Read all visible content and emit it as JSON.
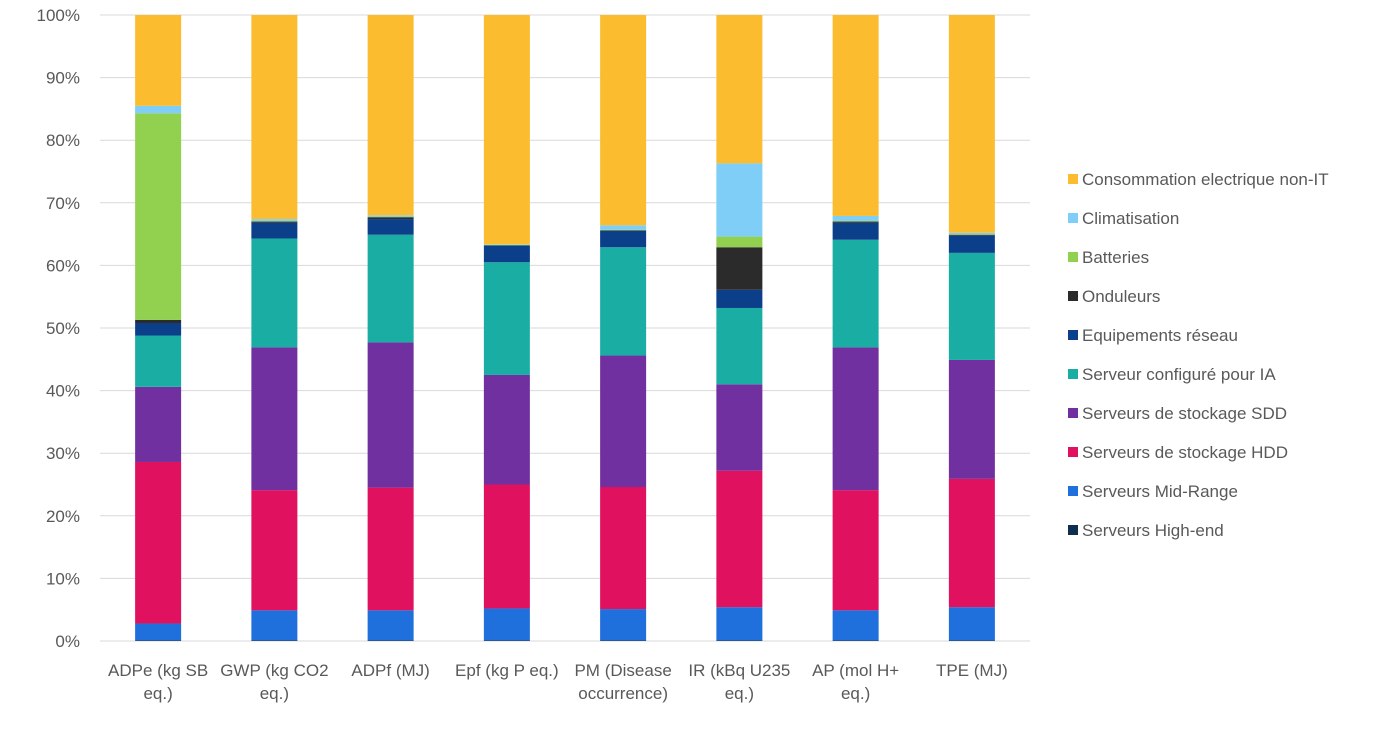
{
  "chart_data": {
    "type": "bar",
    "stacked": true,
    "percent_stacked": true,
    "title": "",
    "xlabel": "",
    "ylabel": "",
    "ylim": [
      0,
      100
    ],
    "y_ticks": [
      "0%",
      "10%",
      "20%",
      "30%",
      "40%",
      "50%",
      "60%",
      "70%",
      "80%",
      "90%",
      "100%"
    ],
    "grid": true,
    "legend_position": "right",
    "categories": [
      [
        "ADPe (kg SB",
        "eq.)"
      ],
      [
        "GWP (kg CO2",
        "eq.)"
      ],
      [
        "ADPf (MJ)"
      ],
      [
        "Epf (kg P eq.)"
      ],
      [
        "PM (Disease",
        "occurrence)"
      ],
      [
        "IR (kBq U235",
        "eq.)"
      ],
      [
        "AP (mol H+",
        "eq.)"
      ],
      [
        "TPE (MJ)"
      ]
    ],
    "series": [
      {
        "name": "Serveurs High-end",
        "color": "#0d2e4f",
        "values": [
          0.1,
          0.1,
          0.1,
          0.1,
          0.1,
          0.1,
          0.1,
          0.1
        ]
      },
      {
        "name": "Serveurs Mid-Range",
        "color": "#1f6fdc",
        "values": [
          2.7,
          4.8,
          4.8,
          5.1,
          5.0,
          5.3,
          4.8,
          5.3
        ]
      },
      {
        "name": "Serveurs de stockage HDD",
        "color": "#e0115f",
        "values": [
          25.8,
          19.2,
          19.6,
          19.8,
          19.5,
          21.8,
          19.2,
          20.5
        ]
      },
      {
        "name": "Serveurs de stockage SDD",
        "color": "#7030a0",
        "values": [
          12.0,
          22.8,
          23.2,
          17.5,
          21.0,
          13.8,
          22.8,
          19.0
        ]
      },
      {
        "name": "Serveur configuré pour IA",
        "color": "#1aada4",
        "values": [
          8.2,
          17.4,
          17.2,
          18.0,
          17.3,
          12.2,
          17.2,
          17.1
        ]
      },
      {
        "name": "Equipements réseau",
        "color": "#0b3f8a",
        "values": [
          2.0,
          2.5,
          2.5,
          2.6,
          2.6,
          2.9,
          2.7,
          2.8
        ]
      },
      {
        "name": "Onduleurs",
        "color": "#2b2b2b",
        "values": [
          0.5,
          0.2,
          0.3,
          0.1,
          0.1,
          6.8,
          0.2,
          0.1
        ]
      },
      {
        "name": "Batteries",
        "color": "#92d050",
        "values": [
          33.0,
          0.1,
          0.1,
          0.1,
          0.1,
          1.7,
          0.1,
          0.1
        ]
      },
      {
        "name": "Climatisation",
        "color": "#7fcef7",
        "values": [
          1.2,
          0.3,
          0.2,
          0.1,
          0.7,
          11.7,
          0.8,
          0.2
        ]
      },
      {
        "name": "Consommation electrique non-IT",
        "color": "#fbbd2f",
        "values": [
          14.5,
          32.6,
          32.0,
          36.6,
          33.6,
          23.7,
          32.1,
          34.8
        ]
      }
    ],
    "legend_order": [
      "Consommation electrique non-IT",
      "Climatisation",
      "Batteries",
      "Onduleurs",
      "Equipements réseau",
      "Serveur configuré pour IA",
      "Serveurs de stockage SDD",
      "Serveurs de stockage HDD",
      "Serveurs Mid-Range",
      "Serveurs High-end"
    ],
    "colors": {
      "grid": "#d9d9d9",
      "axis_text": "#595959",
      "legend_text": "#595959"
    }
  }
}
